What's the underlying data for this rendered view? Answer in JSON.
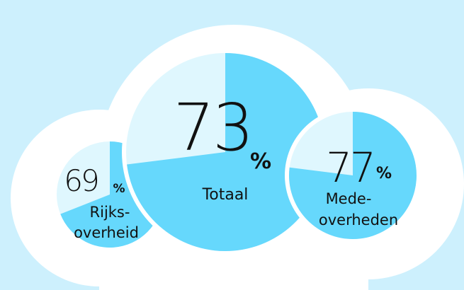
{
  "chart_data": [
    {
      "type": "pie",
      "value": 69,
      "unit": "%",
      "label_lines": [
        "Rijks-",
        "overheid"
      ],
      "color": "#66d8fc",
      "rest_color": "#dff7fe"
    },
    {
      "type": "pie",
      "value": 73,
      "unit": "%",
      "label_lines": [
        "Totaal"
      ],
      "color": "#66d8fc",
      "rest_color": "#dff7fe"
    },
    {
      "type": "pie",
      "value": 77,
      "unit": "%",
      "label_lines": [
        "Mede-",
        "overheden"
      ],
      "color": "#66d8fc",
      "rest_color": "#dff7fe"
    }
  ]
}
